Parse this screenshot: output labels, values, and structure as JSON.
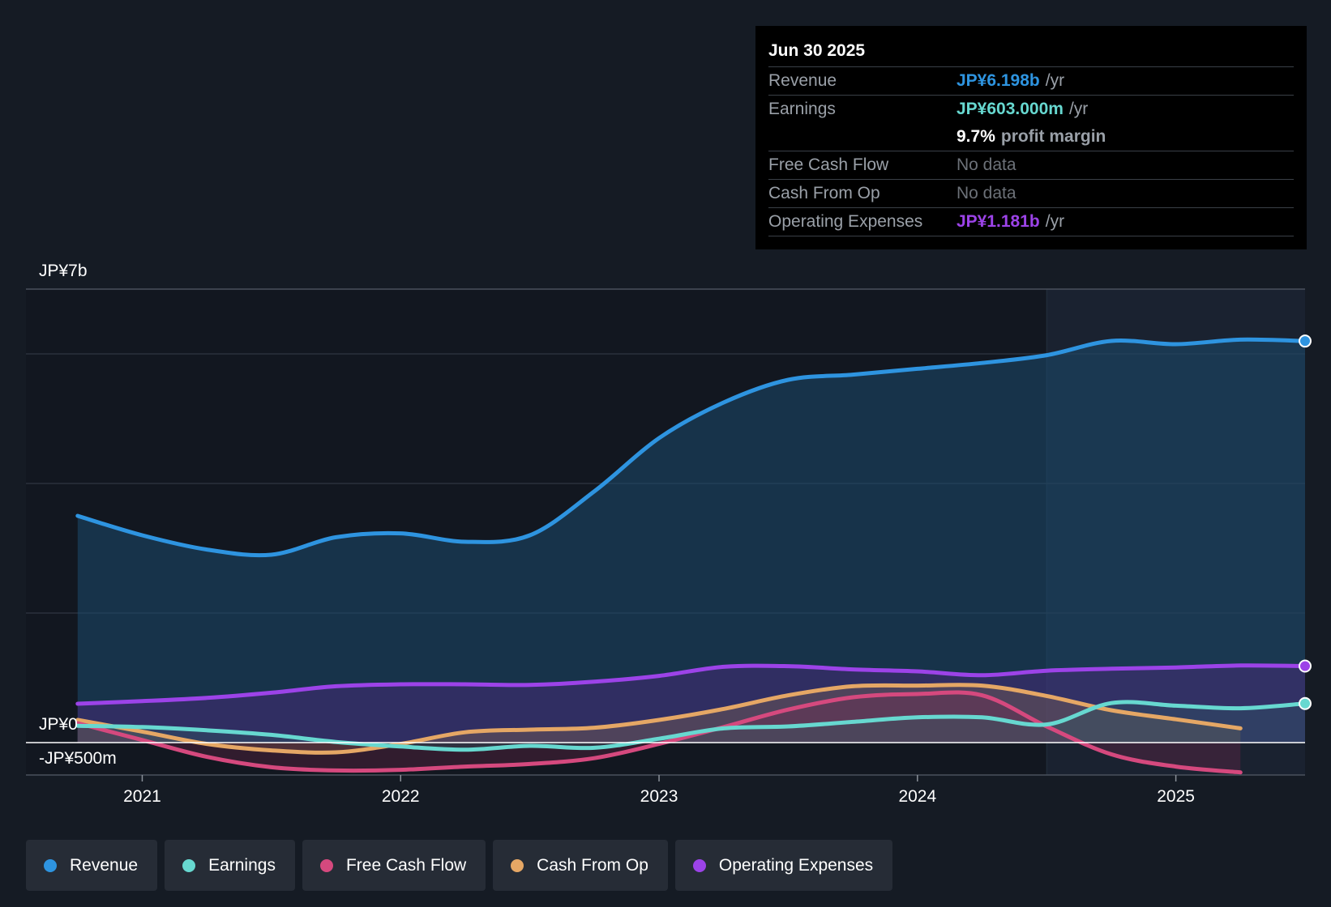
{
  "chart_data": {
    "type": "area",
    "y_top_label": "JP¥7b",
    "y_zero_label": "JP¥0",
    "y_bottom_label": "-JP¥500m",
    "ylim": [
      -0.5,
      7.0
    ],
    "xlim": [
      2020.55,
      2025.5
    ],
    "future_shade_start": 2024.5,
    "x_ticks": [
      {
        "value": 2021,
        "label": "2021"
      },
      {
        "value": 2022,
        "label": "2022"
      },
      {
        "value": 2023,
        "label": "2023"
      },
      {
        "value": 2024,
        "label": "2024"
      },
      {
        "value": 2025,
        "label": "2025"
      }
    ],
    "series": [
      {
        "name": "Revenue",
        "color": "#2e94e0",
        "fill": "#1b4a6e",
        "fill_opacity": 0.55,
        "end_dot": true,
        "points": [
          [
            2020.75,
            3.5
          ],
          [
            2021.0,
            3.2
          ],
          [
            2021.25,
            2.98
          ],
          [
            2021.5,
            2.9
          ],
          [
            2021.75,
            3.17
          ],
          [
            2022.0,
            3.23
          ],
          [
            2022.25,
            3.1
          ],
          [
            2022.5,
            3.2
          ],
          [
            2022.75,
            3.88
          ],
          [
            2023.0,
            4.7
          ],
          [
            2023.25,
            5.25
          ],
          [
            2023.5,
            5.6
          ],
          [
            2023.75,
            5.68
          ],
          [
            2024.0,
            5.77
          ],
          [
            2024.25,
            5.86
          ],
          [
            2024.5,
            5.98
          ],
          [
            2024.75,
            6.2
          ],
          [
            2025.0,
            6.15
          ],
          [
            2025.25,
            6.22
          ],
          [
            2025.5,
            6.198
          ]
        ]
      },
      {
        "name": "Operating Expenses",
        "color": "#9c43e8",
        "fill": "#4a2a7a",
        "fill_opacity": 0.5,
        "end_dot": true,
        "points": [
          [
            2020.75,
            0.6
          ],
          [
            2021.0,
            0.64
          ],
          [
            2021.25,
            0.69
          ],
          [
            2021.5,
            0.77
          ],
          [
            2021.75,
            0.87
          ],
          [
            2022.0,
            0.9
          ],
          [
            2022.25,
            0.9
          ],
          [
            2022.5,
            0.89
          ],
          [
            2022.75,
            0.94
          ],
          [
            2023.0,
            1.03
          ],
          [
            2023.25,
            1.17
          ],
          [
            2023.5,
            1.18
          ],
          [
            2023.75,
            1.13
          ],
          [
            2024.0,
            1.1
          ],
          [
            2024.25,
            1.04
          ],
          [
            2024.5,
            1.11
          ],
          [
            2024.75,
            1.14
          ],
          [
            2025.0,
            1.16
          ],
          [
            2025.25,
            1.19
          ],
          [
            2025.5,
            1.181
          ]
        ]
      },
      {
        "name": "Cash From Op",
        "color": "#e5a765",
        "fill": "#8a6a50",
        "fill_opacity": 0.35,
        "end_dot": false,
        "points": [
          [
            2020.75,
            0.35
          ],
          [
            2021.0,
            0.17
          ],
          [
            2021.25,
            -0.02
          ],
          [
            2021.5,
            -0.12
          ],
          [
            2021.75,
            -0.15
          ],
          [
            2022.0,
            -0.02
          ],
          [
            2022.25,
            0.16
          ],
          [
            2022.5,
            0.2
          ],
          [
            2022.75,
            0.23
          ],
          [
            2023.0,
            0.35
          ],
          [
            2023.25,
            0.52
          ],
          [
            2023.5,
            0.73
          ],
          [
            2023.75,
            0.87
          ],
          [
            2024.0,
            0.88
          ],
          [
            2024.25,
            0.88
          ],
          [
            2024.5,
            0.72
          ],
          [
            2024.75,
            0.5
          ],
          [
            2025.0,
            0.36
          ],
          [
            2025.25,
            0.22
          ]
        ]
      },
      {
        "name": "Free Cash Flow",
        "color": "#d5497e",
        "fill": "#7a2850",
        "fill_opacity": 0.3,
        "end_dot": false,
        "points": [
          [
            2020.75,
            0.3
          ],
          [
            2021.0,
            0.04
          ],
          [
            2021.25,
            -0.22
          ],
          [
            2021.5,
            -0.38
          ],
          [
            2021.75,
            -0.43
          ],
          [
            2022.0,
            -0.42
          ],
          [
            2022.25,
            -0.37
          ],
          [
            2022.5,
            -0.33
          ],
          [
            2022.75,
            -0.24
          ],
          [
            2023.0,
            -0.02
          ],
          [
            2023.25,
            0.24
          ],
          [
            2023.5,
            0.51
          ],
          [
            2023.75,
            0.7
          ],
          [
            2024.0,
            0.75
          ],
          [
            2024.25,
            0.73
          ],
          [
            2024.5,
            0.25
          ],
          [
            2024.75,
            -0.18
          ],
          [
            2025.0,
            -0.37
          ],
          [
            2025.25,
            -0.46
          ]
        ]
      },
      {
        "name": "Earnings",
        "color": "#67d8d0",
        "fill": "#2e5c63",
        "fill_opacity": 0.35,
        "end_dot": true,
        "points": [
          [
            2020.75,
            0.26
          ],
          [
            2021.0,
            0.24
          ],
          [
            2021.25,
            0.19
          ],
          [
            2021.5,
            0.12
          ],
          [
            2021.75,
            0.01
          ],
          [
            2022.0,
            -0.06
          ],
          [
            2022.25,
            -0.11
          ],
          [
            2022.5,
            -0.05
          ],
          [
            2022.75,
            -0.08
          ],
          [
            2023.0,
            0.06
          ],
          [
            2023.25,
            0.22
          ],
          [
            2023.5,
            0.25
          ],
          [
            2023.75,
            0.32
          ],
          [
            2024.0,
            0.39
          ],
          [
            2024.25,
            0.39
          ],
          [
            2024.5,
            0.28
          ],
          [
            2024.75,
            0.61
          ],
          [
            2025.0,
            0.57
          ],
          [
            2025.25,
            0.53
          ],
          [
            2025.5,
            0.603
          ]
        ]
      }
    ]
  },
  "tooltip": {
    "date": "Jun 30 2025",
    "revenue_label": "Revenue",
    "revenue_value": "JP¥6.198b",
    "revenue_unit": "/yr",
    "earnings_label": "Earnings",
    "earnings_value": "JP¥603.000m",
    "earnings_unit": "/yr",
    "margin_value": "9.7%",
    "margin_text": "profit margin",
    "fcf_label": "Free Cash Flow",
    "fcf_value": "No data",
    "cfo_label": "Cash From Op",
    "cfo_value": "No data",
    "opex_label": "Operating Expenses",
    "opex_value": "JP¥1.181b",
    "opex_unit": "/yr"
  },
  "colors": {
    "revenue": "#2e94e0",
    "earnings": "#67d8d0",
    "fcf": "#d5497e",
    "cfo": "#e5a765",
    "opex": "#9c43e8"
  },
  "legend": {
    "revenue": "Revenue",
    "earnings": "Earnings",
    "fcf": "Free Cash Flow",
    "cfo": "Cash From Op",
    "opex": "Operating Expenses"
  }
}
